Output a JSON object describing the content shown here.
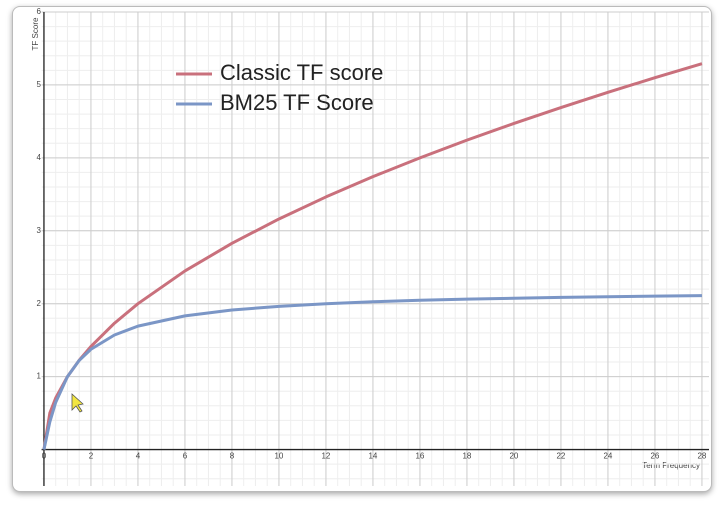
{
  "chart_data": {
    "type": "line",
    "x_label": "Term Frequency",
    "y_label": "TF Score",
    "x": [
      0,
      0.25,
      0.5,
      1,
      1.5,
      2,
      3,
      4,
      6,
      8,
      10,
      12,
      14,
      16,
      18,
      20,
      22,
      24,
      26,
      28
    ],
    "series": [
      {
        "name": "Classic TF score",
        "color": "#c9707c",
        "values": [
          0,
          0.5,
          0.707,
          1,
          1.225,
          1.414,
          1.732,
          2,
          2.449,
          2.828,
          3.162,
          3.464,
          3.742,
          4,
          4.243,
          4.472,
          4.69,
          4.899,
          5.099,
          5.292
        ]
      },
      {
        "name": "BM25 TF Score",
        "color": "#7b96c6",
        "values": [
          0,
          0.379,
          0.647,
          1,
          1.222,
          1.375,
          1.571,
          1.692,
          1.833,
          1.913,
          1.964,
          2.0,
          2.026,
          2.047,
          2.063,
          2.075,
          2.086,
          2.095,
          2.103,
          2.11
        ]
      }
    ],
    "xlim": [
      -0.1,
      28.3
    ],
    "ylim": [
      -0.5,
      6
    ],
    "xticks": [
      0,
      2,
      4,
      6,
      8,
      10,
      12,
      14,
      16,
      18,
      20,
      22,
      24,
      26,
      28
    ],
    "yticks": [
      1,
      2,
      3,
      4,
      5,
      6
    ],
    "grid": true,
    "legend": "top"
  }
}
